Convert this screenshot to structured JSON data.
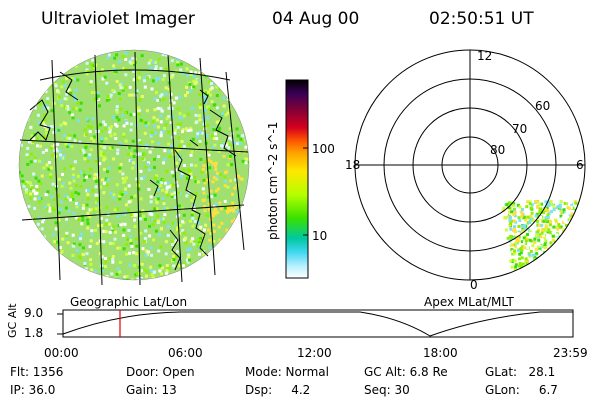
{
  "header": {
    "title": "Ultraviolet Imager",
    "date": "04 Aug 00",
    "time": "02:50:51 UT"
  },
  "colorbar": {
    "label": "photon cm^-2 s^-1",
    "ticks": [
      "100",
      "10"
    ],
    "colors": [
      "#000000",
      "#3a0057",
      "#8b0033",
      "#d4001e",
      "#ff5a00",
      "#ffa400",
      "#ffe800",
      "#b4ff00",
      "#38e000",
      "#00c8a0",
      "#40d8f0",
      "#b8f0ff",
      "#ffffff"
    ]
  },
  "map": {
    "caption": "Geographic Lat/Lon"
  },
  "polar": {
    "caption": "Apex MLat/MLT",
    "mlt_labels": {
      "top": "12",
      "left": "18",
      "right": "6",
      "bottom": "0"
    },
    "lat_labels": [
      "60",
      "70",
      "80"
    ]
  },
  "timeline": {
    "ylabel": "GC Alt",
    "yticks": [
      "9.0",
      "1.8"
    ],
    "xticks": [
      "00:00",
      "06:00",
      "12:00",
      "18:00",
      "23:59"
    ],
    "current_marker": "02:50"
  },
  "info": {
    "flt": "Flt: 1356",
    "ip": "IP: 36.0",
    "door": "Door: Open",
    "gain": "Gain: 13",
    "mode": "Mode: Normal",
    "dsp": "Dsp:     4.2",
    "gcalt": "GC Alt: 6.8 Re",
    "seq": "Seq: 30",
    "glat": "GLat:   28.1",
    "glon": "GLon:     6.7"
  }
}
